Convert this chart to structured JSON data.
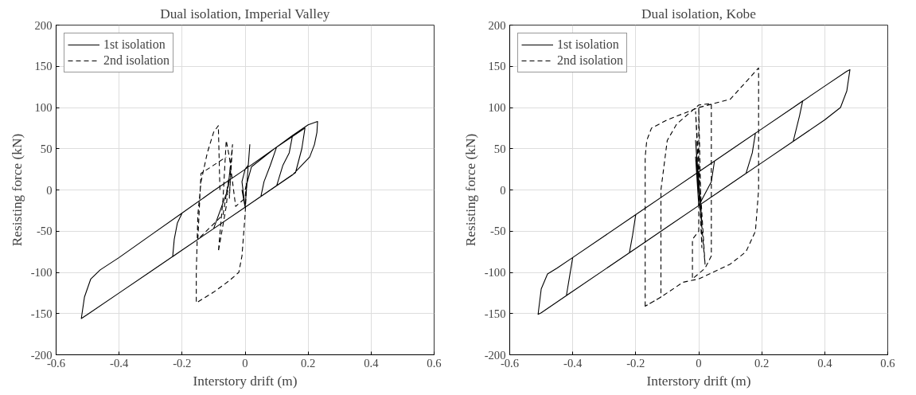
{
  "chart_data": [
    {
      "type": "line",
      "title": "Dual isolation, Imperial Valley",
      "xlabel": "Interstory drift (m)",
      "ylabel": "Resisting force (kN)",
      "xlim": [
        -0.6,
        0.6
      ],
      "ylim": [
        -200,
        200
      ],
      "xticks": [
        -0.6,
        -0.4,
        -0.2,
        0,
        0.2,
        0.4,
        0.6
      ],
      "yticks": [
        -200,
        -150,
        -100,
        -50,
        0,
        50,
        100,
        150,
        200
      ],
      "grid": true,
      "legend": "top left",
      "series": [
        {
          "name": "1st isolation",
          "color": "#000000",
          "line_style": "solid",
          "x": [
            0.0,
            0.02,
            0.1,
            0.15,
            0.2,
            0.23,
            0.228,
            0.22,
            0.205,
            0.15,
            0.1,
            0.05,
            0.0,
            -0.1,
            -0.2,
            -0.23,
            -0.225,
            -0.215,
            -0.2,
            -0.1,
            -0.05,
            -0.06,
            -0.1,
            -0.2,
            -0.3,
            -0.4,
            -0.5,
            -0.52,
            -0.51,
            -0.49,
            -0.46,
            -0.4,
            -0.3,
            -0.2,
            -0.1,
            0.0,
            0.1,
            0.15,
            0.14,
            0.12,
            0.1,
            0.05,
            0.06,
            0.08,
            0.1,
            0.19,
            0.18,
            0.16,
            0.0,
            -0.01,
            0.0,
            0.01,
            0.015,
            0.0,
            -0.01
          ],
          "values": [
            0,
            28,
            52,
            66,
            79,
            83,
            70,
            55,
            40,
            18,
            5,
            -8,
            -21,
            -47,
            -73,
            -81,
            -60,
            -40,
            -28,
            -1,
            12,
            -5,
            -47,
            -73,
            -99,
            -125,
            -151,
            -156,
            -130,
            -108,
            -97,
            -82,
            -55,
            -28,
            -1,
            25,
            52,
            65,
            45,
            30,
            5,
            -8,
            10,
            30,
            52,
            75,
            50,
            21,
            -21,
            10,
            25,
            30,
            55,
            -21,
            0
          ]
        },
        {
          "name": "2nd isolation",
          "color": "#000000",
          "line_style": "dashed",
          "x": [
            -0.08,
            -0.085,
            -0.1,
            -0.12,
            -0.14,
            -0.15,
            -0.155,
            -0.155,
            -0.1,
            -0.05,
            -0.02,
            -0.01,
            0.0,
            0.005,
            0.0,
            -0.03,
            -0.05,
            -0.06,
            -0.07,
            -0.085,
            -0.06,
            -0.04,
            -0.05,
            -0.045,
            -0.07,
            -0.15,
            -0.14,
            -0.06
          ],
          "values": [
            0,
            78,
            70,
            45,
            10,
            -30,
            -100,
            -137,
            -124,
            -110,
            -100,
            -80,
            -30,
            10,
            -10,
            -20,
            40,
            60,
            -10,
            -75,
            -20,
            55,
            -10,
            30,
            -30,
            -60,
            20,
            40
          ]
        }
      ]
    },
    {
      "type": "line",
      "title": "Dual isolation, Kobe",
      "xlabel": "Interstory drift (m)",
      "ylabel": "Resisting force (kN)",
      "xlim": [
        -0.6,
        0.6
      ],
      "ylim": [
        -200,
        200
      ],
      "xticks": [
        -0.6,
        -0.4,
        -0.2,
        0,
        0.2,
        0.4,
        0.6
      ],
      "yticks": [
        -200,
        -150,
        -100,
        -50,
        0,
        50,
        100,
        150,
        200
      ],
      "grid": true,
      "legend": "top left",
      "series": [
        {
          "name": "1st isolation",
          "color": "#000000",
          "line_style": "solid",
          "x": [
            0.0,
            0.1,
            0.2,
            0.3,
            0.4,
            0.47,
            0.48,
            0.47,
            0.45,
            0.4,
            0.3,
            0.2,
            0.1,
            0.0,
            -0.1,
            -0.2,
            -0.3,
            -0.4,
            -0.5,
            -0.51,
            -0.5,
            -0.48,
            -0.45,
            -0.4,
            -0.3,
            -0.2,
            -0.1,
            0.0,
            0.1,
            0.2,
            0.3,
            0.33,
            0.32,
            0.3,
            0.2,
            0.1,
            0.0,
            -0.1,
            -0.2,
            -0.3,
            -0.4,
            -0.42,
            -0.41,
            -0.4,
            -0.3,
            -0.2,
            -0.1,
            0.0,
            0.05,
            0.04,
            0.0,
            -0.1,
            -0.2,
            -0.22,
            -0.21,
            -0.2,
            -0.1,
            0.0,
            0.1,
            0.18,
            0.17,
            0.15,
            0.0,
            -0.01,
            0.01,
            -0.01,
            0.0
          ],
          "values": [
            22,
            48,
            74,
            100,
            126,
            144,
            146,
            120,
            100,
            85,
            59,
            33,
            7,
            -19,
            -45,
            -71,
            -97,
            -123,
            -149,
            -151,
            -120,
            -102,
            -95,
            -82,
            -56,
            -30,
            -4,
            22,
            48,
            74,
            100,
            108,
            90,
            59,
            33,
            7,
            -19,
            -45,
            -71,
            -97,
            -123,
            -128,
            -105,
            -82,
            -56,
            -30,
            -4,
            22,
            35,
            10,
            -19,
            -45,
            -71,
            -76,
            -55,
            -30,
            -4,
            22,
            48,
            69,
            45,
            20,
            -19,
            40,
            -40,
            60,
            0
          ]
        },
        {
          "name": "2nd isolation",
          "color": "#000000",
          "line_style": "dashed",
          "x": [
            -0.17,
            -0.17,
            -0.165,
            -0.15,
            -0.1,
            0.0,
            0.1,
            0.19,
            0.19,
            0.18,
            0.15,
            0.1,
            0.0,
            -0.05,
            -0.12,
            -0.17,
            -0.12,
            -0.12,
            -0.1,
            -0.07,
            0.0,
            0.04,
            0.04,
            0.02,
            -0.02,
            -0.02,
            0.0,
            0.0,
            0.01,
            -0.01,
            0.02,
            0.0
          ],
          "values": [
            -141,
            40,
            60,
            75,
            85,
            100,
            110,
            148,
            0,
            -50,
            -75,
            -90,
            -108,
            -112,
            -130,
            -141,
            -130,
            0,
            60,
            80,
            103,
            105,
            -80,
            -95,
            -108,
            -60,
            -50,
            100,
            -70,
            95,
            -90,
            0
          ]
        }
      ]
    }
  ]
}
